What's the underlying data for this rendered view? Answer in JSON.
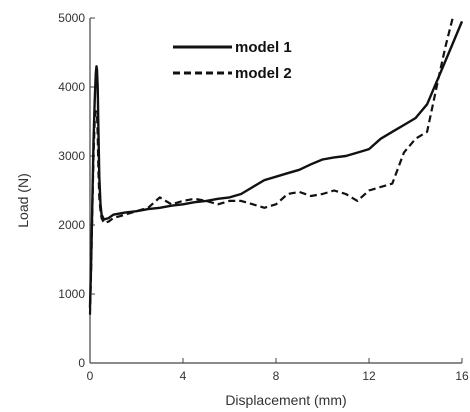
{
  "chart_data": {
    "type": "line",
    "title": "",
    "xlabel": "Displacement (mm)",
    "ylabel": "Load (N)",
    "xlim": [
      0,
      16
    ],
    "ylim": [
      0,
      5000
    ],
    "xticks": [
      0,
      4,
      8,
      12,
      16
    ],
    "yticks": [
      0,
      1000,
      2000,
      3000,
      4000,
      5000
    ],
    "grid": false,
    "legend_position": "top-center",
    "series": [
      {
        "name": "model 1",
        "style": "solid",
        "color": "#111111",
        "x": [
          0,
          0.05,
          0.1,
          0.15,
          0.2,
          0.25,
          0.28,
          0.3,
          0.33,
          0.36,
          0.4,
          0.45,
          0.5,
          0.6,
          0.8,
          1.0,
          1.5,
          2.0,
          2.5,
          3.0,
          3.5,
          4.0,
          4.5,
          5.0,
          5.5,
          6.0,
          6.5,
          7.0,
          7.5,
          8.0,
          8.5,
          9.0,
          9.5,
          10.0,
          10.5,
          11.0,
          11.5,
          12.0,
          12.5,
          13.0,
          13.5,
          14.0,
          14.5,
          15.0,
          15.5,
          16.0
        ],
        "y": [
          800,
          1500,
          2300,
          3200,
          3800,
          4200,
          4300,
          4250,
          4000,
          3400,
          2700,
          2300,
          2150,
          2080,
          2100,
          2150,
          2180,
          2200,
          2230,
          2250,
          2280,
          2300,
          2330,
          2350,
          2380,
          2400,
          2450,
          2550,
          2650,
          2700,
          2750,
          2800,
          2880,
          2950,
          2980,
          3000,
          3050,
          3100,
          3250,
          3350,
          3450,
          3550,
          3750,
          4150,
          4550,
          4950
        ]
      },
      {
        "name": "model 2",
        "style": "dashed",
        "color": "#111111",
        "x": [
          0,
          0.05,
          0.1,
          0.15,
          0.2,
          0.25,
          0.3,
          0.33,
          0.36,
          0.4,
          0.45,
          0.5,
          0.6,
          0.8,
          1.0,
          1.5,
          2.0,
          2.5,
          3.0,
          3.5,
          4.0,
          4.5,
          5.0,
          5.5,
          6.0,
          6.5,
          7.0,
          7.5,
          8.0,
          8.5,
          9.0,
          9.5,
          10.0,
          10.5,
          11.0,
          11.5,
          12.0,
          12.5,
          13.0,
          13.5,
          14.0,
          14.5,
          15.0,
          15.3,
          15.6
        ],
        "y": [
          700,
          1400,
          2200,
          3000,
          3500,
          3650,
          3600,
          3300,
          2800,
          2400,
          2200,
          2100,
          2030,
          2050,
          2100,
          2150,
          2200,
          2250,
          2400,
          2300,
          2350,
          2380,
          2350,
          2300,
          2350,
          2350,
          2300,
          2250,
          2300,
          2450,
          2480,
          2420,
          2450,
          2500,
          2450,
          2350,
          2500,
          2550,
          2600,
          3050,
          3250,
          3350,
          4150,
          4600,
          5000
        ]
      }
    ]
  }
}
